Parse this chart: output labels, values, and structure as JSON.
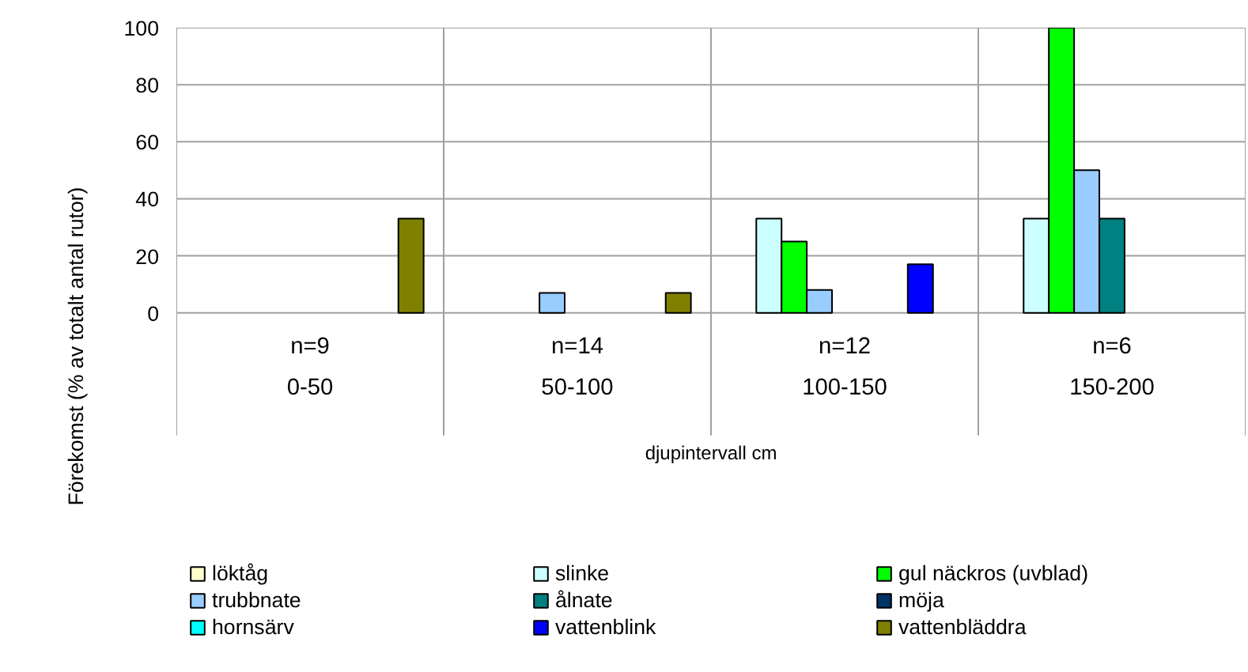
{
  "chart_data": {
    "type": "bar",
    "xlabel": "djupintervall cm",
    "ylabel": "Förekomst (% av totalt antal rutor)",
    "categories": [
      "n=9\n0-50",
      "n=14\n50-100",
      "n=12\n100-150",
      "n=6\n150-200"
    ],
    "series": [
      {
        "name": "löktåg",
        "color": "#ffffcc",
        "values": [
          null,
          null,
          null,
          null
        ]
      },
      {
        "name": "slinke",
        "color": "#ccffff",
        "values": [
          null,
          null,
          33,
          33
        ]
      },
      {
        "name": "gul näckros (uvblad)",
        "color": "#00ff00",
        "values": [
          null,
          null,
          25,
          100
        ]
      },
      {
        "name": "trubbnate",
        "color": "#99ccff",
        "values": [
          null,
          7,
          8,
          50
        ]
      },
      {
        "name": "ålnate",
        "color": "#008080",
        "values": [
          null,
          null,
          null,
          33
        ]
      },
      {
        "name": "möja",
        "color": "#003366",
        "values": [
          null,
          null,
          null,
          null
        ]
      },
      {
        "name": "hornsärv",
        "color": "#00ffff",
        "values": [
          null,
          null,
          null,
          null
        ]
      },
      {
        "name": "vattenblink",
        "color": "#0000ff",
        "values": [
          null,
          null,
          17,
          null
        ]
      },
      {
        "name": "vattenbläddra",
        "color": "#808000",
        "values": [
          33,
          7,
          null,
          null
        ]
      }
    ],
    "ylim": [
      0,
      100
    ],
    "yticks": [
      0,
      20,
      40,
      60,
      80,
      100
    ],
    "grid": true,
    "legend": "bottom"
  }
}
